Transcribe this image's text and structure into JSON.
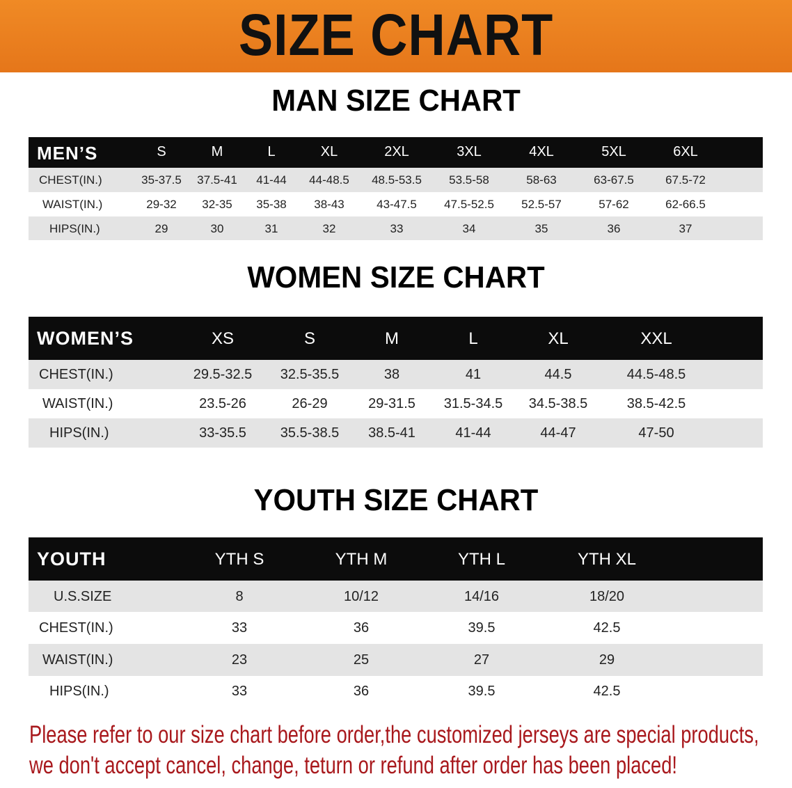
{
  "banner": {
    "title": "SIZE CHART",
    "color": "#e97d1f"
  },
  "men": {
    "title": "MAN SIZE CHART",
    "header_label": "MEN’S",
    "sizes": [
      "S",
      "M",
      "L",
      "XL",
      "2XL",
      "3XL",
      "4XL",
      "5XL",
      "6XL"
    ],
    "rows": [
      {
        "label": "CHEST(IN.)",
        "values": [
          "35-37.5",
          "37.5-41",
          "41-44",
          "44-48.5",
          "48.5-53.5",
          "53.5-58",
          "58-63",
          "63-67.5",
          "67.5-72"
        ]
      },
      {
        "label": "WAIST(IN.)",
        "values": [
          "29-32",
          "32-35",
          "35-38",
          "38-43",
          "43-47.5",
          "47.5-52.5",
          "52.5-57",
          "57-62",
          "62-66.5"
        ]
      },
      {
        "label": "HIPS(IN.)",
        "values": [
          "29",
          "30",
          "31",
          "32",
          "33",
          "34",
          "35",
          "36",
          "37"
        ]
      }
    ]
  },
  "women": {
    "title": "WOMEN SIZE CHART",
    "header_label": "WOMEN’S",
    "sizes": [
      "XS",
      "S",
      "M",
      "L",
      "XL",
      "XXL"
    ],
    "rows": [
      {
        "label": "CHEST(IN.)",
        "values": [
          "29.5-32.5",
          "32.5-35.5",
          "38",
          "41",
          "44.5",
          "44.5-48.5"
        ]
      },
      {
        "label": "WAIST(IN.)",
        "values": [
          "23.5-26",
          "26-29",
          "29-31.5",
          "31.5-34.5",
          "34.5-38.5",
          "38.5-42.5"
        ]
      },
      {
        "label": "HIPS(IN.)",
        "values": [
          "33-35.5",
          "35.5-38.5",
          "38.5-41",
          "41-44",
          "44-47",
          "47-50"
        ]
      }
    ]
  },
  "youth": {
    "title": "YOUTH SIZE CHART",
    "header_label": "YOUTH",
    "sizes": [
      "YTH S",
      "YTH M",
      "YTH L",
      "YTH XL"
    ],
    "rows": [
      {
        "label": "U.S.SIZE",
        "values": [
          "8",
          "10/12",
          "14/16",
          "18/20"
        ]
      },
      {
        "label": "CHEST(IN.)",
        "values": [
          "33",
          "36",
          "39.5",
          "42.5"
        ]
      },
      {
        "label": "WAIST(IN.)",
        "values": [
          "23",
          "25",
          "27",
          "29"
        ]
      },
      {
        "label": "HIPS(IN.)",
        "values": [
          "33",
          "36",
          "39.5",
          "42.5"
        ]
      }
    ]
  },
  "notice": {
    "line1": "Please refer to our size chart before order,the customized jerseys are special products,",
    "line2": "we don't accept cancel, change, teturn or refund after order has been placed!",
    "color": "#a8181c"
  }
}
